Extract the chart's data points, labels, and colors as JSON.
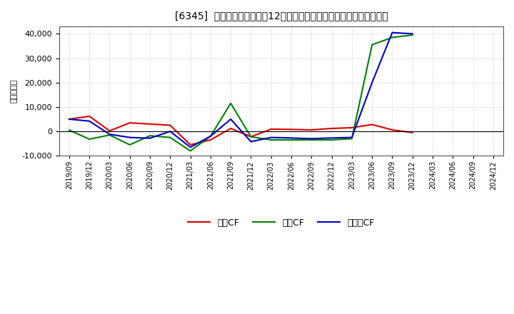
{
  "title": "[6345]  キャッシュフローの12か月移動合計の対前年同期増減額の推移",
  "ylabel": "（百万円）",
  "background_color": "#ffffff",
  "plot_bg_color": "#ffffff",
  "grid_color": "#aaaaaa",
  "x_labels": [
    "2019/09",
    "2019/12",
    "2020/03",
    "2020/06",
    "2020/09",
    "2020/12",
    "2021/03",
    "2021/06",
    "2021/09",
    "2021/12",
    "2022/03",
    "2022/06",
    "2022/09",
    "2022/12",
    "2023/03",
    "2023/06",
    "2023/09",
    "2023/12",
    "2024/03",
    "2024/06",
    "2024/09",
    "2024/12"
  ],
  "eigyo_cf": [
    5000,
    6200,
    200,
    3500,
    3000,
    2500,
    -5500,
    -3500,
    1200,
    -2200,
    900,
    800,
    600,
    1200,
    1500,
    2800,
    600,
    -500,
    null,
    null,
    null,
    null
  ],
  "toshi_cf": [
    500,
    -3200,
    -1500,
    -5500,
    -1800,
    -2500,
    -8000,
    -2000,
    11500,
    -2200,
    -3500,
    -3500,
    -3500,
    -3500,
    -3000,
    35500,
    38500,
    39500,
    null,
    null,
    null,
    null
  ],
  "free_cf": [
    5000,
    4200,
    -1200,
    -2500,
    -2800,
    0,
    -6500,
    -2000,
    5000,
    -4200,
    -2500,
    -2700,
    -3000,
    -2700,
    -2500,
    20000,
    40500,
    40000,
    null,
    null,
    null,
    null
  ],
  "eigyo_color": "#dd0000",
  "toshi_color": "#008000",
  "free_color": "#0000cc",
  "ylim": [
    -10000,
    43000
  ],
  "yticks": [
    -10000,
    0,
    10000,
    20000,
    30000,
    40000
  ],
  "legend_labels": [
    "営業CF",
    "投資CF",
    "フリーCF"
  ]
}
